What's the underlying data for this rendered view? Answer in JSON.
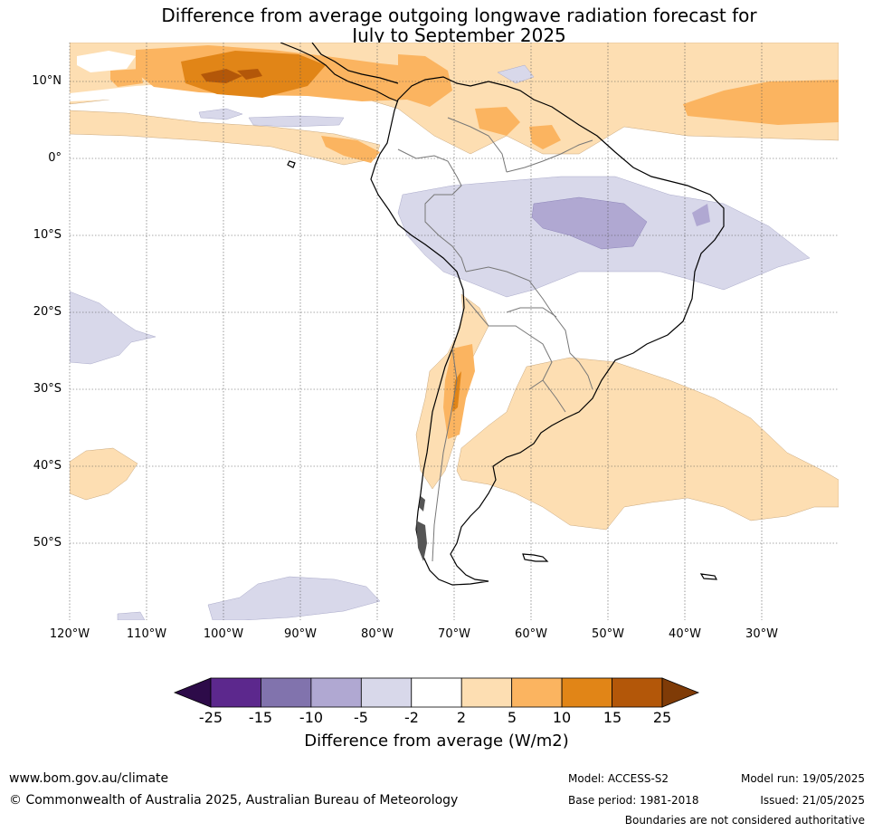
{
  "title": {
    "line1": "Difference from average outgoing longwave radiation forecast for",
    "line2": "July to September 2025"
  },
  "axes": {
    "lat_labels": [
      "10°N",
      "0°",
      "10°S",
      "20°S",
      "30°S",
      "40°S",
      "50°S"
    ],
    "lon_labels": [
      "120°W",
      "110°W",
      "100°W",
      "90°W",
      "80°W",
      "70°W",
      "60°W",
      "50°W",
      "40°W",
      "30°W"
    ],
    "lat_range": [
      -60,
      15
    ],
    "lon_range": [
      -120,
      -20
    ]
  },
  "legend": {
    "ticks": [
      "-25",
      "-15",
      "-10",
      "-5",
      "-2",
      "2",
      "5",
      "10",
      "15",
      "25"
    ],
    "label": "Difference from average (W/m2)",
    "colors": [
      "#2d0b49",
      "#5c288d",
      "#8173ad",
      "#b0a8d2",
      "#d8d8ea",
      "#ffffff",
      "#fddeb2",
      "#fbb460",
      "#e18517",
      "#b35709",
      "#7f3b07"
    ]
  },
  "footer": {
    "website": "www.bom.gov.au/climate",
    "copyright": "© Commonwealth of Australia 2025, Australian Bureau of Meteorology",
    "model": "Model: ACCESS-S2",
    "base_period": "Base period: 1981-2018",
    "model_run": "Model run: 19/05/2025",
    "issued": "Issued: 21/05/2025",
    "boundaries": "Boundaries are not considered authoritative"
  }
}
